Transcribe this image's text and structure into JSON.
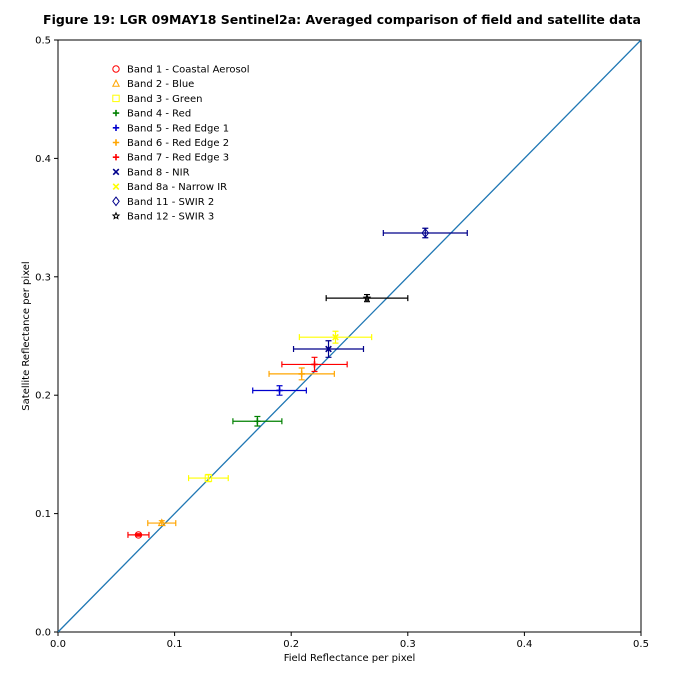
{
  "chart_data": {
    "type": "scatter",
    "title": "Figure 19: LGR 09MAY18  Sentinel2a: Averaged comparison of field and satellite data",
    "xlabel": "Field Reflectance per pixel",
    "ylabel": "Satellite Reflectance per pixel",
    "xlim": [
      0.0,
      0.5
    ],
    "ylim": [
      0.0,
      0.5
    ],
    "xticks": [
      "0.0",
      "0.1",
      "0.2",
      "0.3",
      "0.4",
      "0.5"
    ],
    "yticks": [
      "0.0",
      "0.1",
      "0.2",
      "0.3",
      "0.4",
      "0.5"
    ],
    "grid": false,
    "legend_position": "top-left",
    "reference_line": {
      "from": [
        0.0,
        0.0
      ],
      "to": [
        0.5,
        0.5
      ],
      "color": "#1f77b4"
    },
    "series": [
      {
        "name": "Band 1 - Coastal Aerosol",
        "marker": "circle",
        "color": "#ff0000",
        "x": 0.069,
        "y": 0.082,
        "xerr": 0.009,
        "yerr": 0.001
      },
      {
        "name": "Band 2 - Blue",
        "marker": "triangle",
        "color": "#ffa500",
        "x": 0.089,
        "y": 0.092,
        "xerr": 0.012,
        "yerr": 0.002
      },
      {
        "name": "Band 3 - Green",
        "marker": "square",
        "color": "#ffff00",
        "x": 0.129,
        "y": 0.13,
        "xerr": 0.017,
        "yerr": 0.003
      },
      {
        "name": "Band 4 - Red",
        "marker": "plus",
        "color": "#008000",
        "x": 0.171,
        "y": 0.178,
        "xerr": 0.021,
        "yerr": 0.004
      },
      {
        "name": "Band 5 - Red Edge 1",
        "marker": "plus",
        "color": "#0000cd",
        "x": 0.19,
        "y": 0.204,
        "xerr": 0.023,
        "yerr": 0.004
      },
      {
        "name": "Band 6 - Red Edge 2",
        "marker": "plus",
        "color": "#ffa500",
        "x": 0.209,
        "y": 0.218,
        "xerr": 0.028,
        "yerr": 0.005
      },
      {
        "name": "Band 7 - Red Edge 3",
        "marker": "plus",
        "color": "#ff0000",
        "x": 0.22,
        "y": 0.226,
        "xerr": 0.028,
        "yerr": 0.006
      },
      {
        "name": "Band 8 - NIR",
        "marker": "x",
        "color": "#00008b",
        "x": 0.232,
        "y": 0.239,
        "xerr": 0.03,
        "yerr": 0.007
      },
      {
        "name": "Band 8a - Narrow IR",
        "marker": "x",
        "color": "#ffff00",
        "x": 0.238,
        "y": 0.249,
        "xerr": 0.031,
        "yerr": 0.005
      },
      {
        "name": "Band 11 - SWIR 2",
        "marker": "diamond",
        "color": "#00008b",
        "x": 0.315,
        "y": 0.337,
        "xerr": 0.036,
        "yerr": 0.004
      },
      {
        "name": "Band 12 - SWIR 3",
        "marker": "star",
        "color": "#000000",
        "x": 0.265,
        "y": 0.282,
        "xerr": 0.035,
        "yerr": 0.003
      }
    ]
  }
}
